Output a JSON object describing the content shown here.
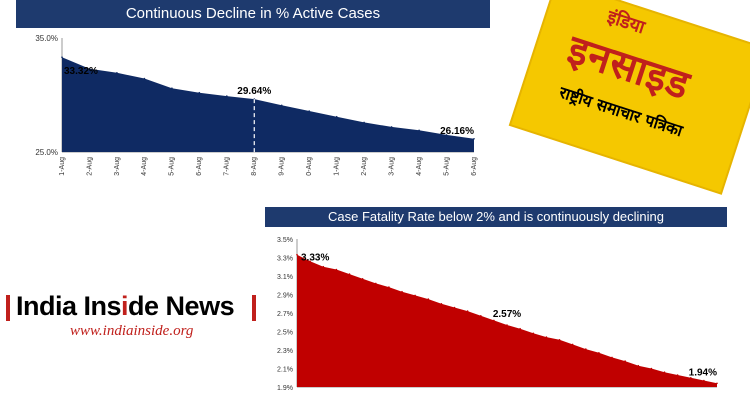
{
  "colors": {
    "title_bar": "#1e3a6e",
    "area_active": "#0f2a63",
    "area_fatality": "#c00000",
    "logo_red": "#c0201c",
    "logo_yellow": "#f5c800"
  },
  "chart_data": [
    {
      "type": "area",
      "title": "Continuous Decline in % Active Cases",
      "ylim": [
        25.0,
        35.0
      ],
      "y_ticks": [
        "35.0%",
        "25.0%"
      ],
      "categories": [
        "1-Aug",
        "2-Aug",
        "3-Aug",
        "4-Aug",
        "5-Aug",
        "6-Aug",
        "7-Aug",
        "8-Aug",
        "9-Aug",
        "0-Aug",
        "1-Aug",
        "2-Aug",
        "3-Aug",
        "4-Aug",
        "5-Aug",
        "6-Aug"
      ],
      "values": [
        33.32,
        32.3,
        31.95,
        31.45,
        30.6,
        30.2,
        29.9,
        29.64,
        29.1,
        28.6,
        28.1,
        27.6,
        27.2,
        26.9,
        26.5,
        26.16
      ],
      "data_labels": [
        {
          "index": 0,
          "text": "33.32%"
        },
        {
          "index": 7,
          "text": "29.64%"
        },
        {
          "index": 15,
          "text": "26.16%"
        }
      ],
      "marker_index": 7,
      "grid": false
    },
    {
      "type": "area",
      "title": "Case Fatality Rate below 2% and is continuously declining",
      "ylim": [
        1.9,
        3.5
      ],
      "y_ticks": [
        "3.5%",
        "3.3%",
        "3.1%",
        "2.9%",
        "2.7%",
        "2.5%",
        "2.3%",
        "2.1%",
        "1.9%"
      ],
      "values": [
        3.33,
        3.26,
        3.2,
        3.17,
        3.12,
        3.07,
        3.02,
        2.98,
        2.93,
        2.89,
        2.85,
        2.8,
        2.76,
        2.72,
        2.67,
        2.62,
        2.57,
        2.53,
        2.48,
        2.44,
        2.41,
        2.36,
        2.31,
        2.27,
        2.22,
        2.18,
        2.13,
        2.1,
        2.06,
        2.03,
        2.0,
        1.97,
        1.94
      ],
      "data_labels": [
        {
          "index": 0,
          "text": "3.33%"
        },
        {
          "index": 16,
          "text": "2.57%"
        },
        {
          "index": 32,
          "text": "1.94%"
        }
      ],
      "grid": false
    }
  ],
  "logos": {
    "hindi_line1": "इंडिया",
    "hindi_line2": "इनसाइड",
    "hindi_line3": "राष्ट्रीय समाचार पत्रिका",
    "english_name_a": "India Ins",
    "english_name_b": "i",
    "english_name_c": "de News",
    "english_url": "www.indiainside.org"
  }
}
